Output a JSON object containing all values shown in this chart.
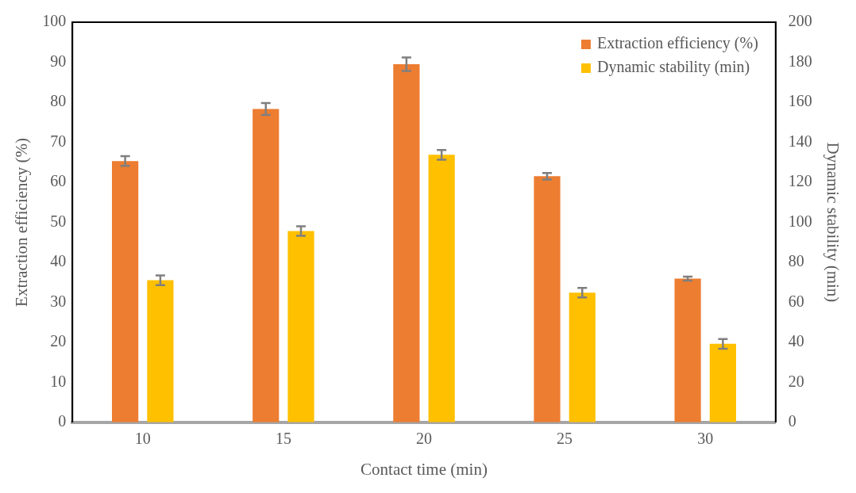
{
  "chart_data": {
    "type": "bar",
    "xlabel": "Contact time (min)",
    "ylabel": "Extraction efficiency (%)",
    "y2label": "Dynamic stability (min)",
    "categories": [
      "10",
      "15",
      "20",
      "25",
      "30"
    ],
    "series": [
      {
        "name": "Extraction efficiency (%)",
        "color": "#ed7d31",
        "values": [
          65.3,
          78.3,
          89.5,
          61.5,
          35.9
        ],
        "errors": [
          1.2,
          1.5,
          1.7,
          0.8,
          0.5
        ]
      },
      {
        "name": "Dynamic stability (min)",
        "color": "#ffc000",
        "axis": "y2",
        "values": [
          71,
          95.6,
          133.7,
          64.8,
          39.2
        ],
        "errors": [
          2.4,
          2.4,
          2.4,
          2.4,
          2.4
        ]
      }
    ],
    "ylim": [
      0,
      100
    ],
    "yticks": [
      0,
      10,
      20,
      30,
      40,
      50,
      60,
      70,
      80,
      90,
      100
    ],
    "y2lim": [
      0,
      200
    ],
    "y2ticks": [
      0,
      20,
      40,
      60,
      80,
      100,
      120,
      140,
      160,
      180,
      200
    ],
    "grid": false,
    "legend": "top right"
  }
}
